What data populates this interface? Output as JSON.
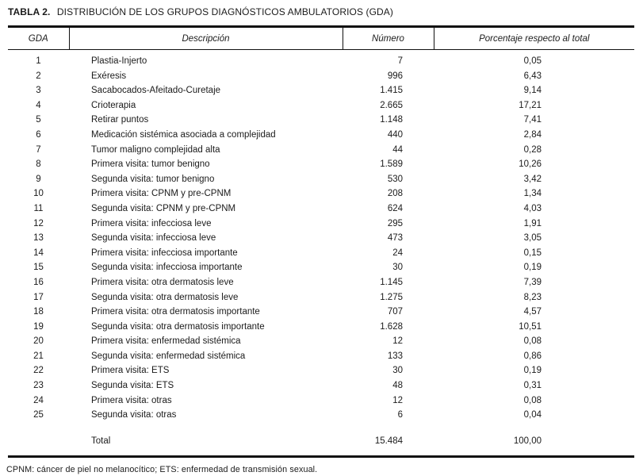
{
  "colors": {
    "ink": "#1b1b1b",
    "rule": "#111111",
    "background": "#ffffff"
  },
  "title": {
    "label": "TABLA 2.",
    "caption": "DISTRIBUCIÓN DE LOS GRUPOS DIAGNÓSTICOS AMBULATORIOS (GDA)"
  },
  "table": {
    "columns": [
      "GDA",
      "Descripción",
      "Número",
      "Porcentaje respecto al total"
    ],
    "rows": [
      {
        "gda": "1",
        "descripcion": "Plastia-Injerto",
        "numero": "7",
        "porcentaje": "0,05"
      },
      {
        "gda": "2",
        "descripcion": "Exéresis",
        "numero": "996",
        "porcentaje": "6,43"
      },
      {
        "gda": "3",
        "descripcion": "Sacabocados-Afeitado-Curetaje",
        "numero": "1.415",
        "porcentaje": "9,14"
      },
      {
        "gda": "4",
        "descripcion": "Crioterapia",
        "numero": "2.665",
        "porcentaje": "17,21"
      },
      {
        "gda": "5",
        "descripcion": "Retirar puntos",
        "numero": "1.148",
        "porcentaje": "7,41"
      },
      {
        "gda": "6",
        "descripcion": "Medicación sistémica asociada a complejidad",
        "numero": "440",
        "porcentaje": "2,84"
      },
      {
        "gda": "7",
        "descripcion": "Tumor maligno complejidad alta",
        "numero": "44",
        "porcentaje": "0,28"
      },
      {
        "gda": "8",
        "descripcion": "Primera visita: tumor benigno",
        "numero": "1.589",
        "porcentaje": "10,26"
      },
      {
        "gda": "9",
        "descripcion": "Segunda visita: tumor benigno",
        "numero": "530",
        "porcentaje": "3,42"
      },
      {
        "gda": "10",
        "descripcion": "Primera visita: CPNM y pre-CPNM",
        "numero": "208",
        "porcentaje": "1,34"
      },
      {
        "gda": "11",
        "descripcion": "Segunda visita: CPNM y pre-CPNM",
        "numero": "624",
        "porcentaje": "4,03"
      },
      {
        "gda": "12",
        "descripcion": "Primera visita: infecciosa leve",
        "numero": "295",
        "porcentaje": "1,91"
      },
      {
        "gda": "13",
        "descripcion": "Segunda visita: infecciosa leve",
        "numero": "473",
        "porcentaje": "3,05"
      },
      {
        "gda": "14",
        "descripcion": "Primera visita: infecciosa importante",
        "numero": "24",
        "porcentaje": "0,15"
      },
      {
        "gda": "15",
        "descripcion": "Segunda visita: infecciosa importante",
        "numero": "30",
        "porcentaje": "0,19"
      },
      {
        "gda": "16",
        "descripcion": "Primera visita: otra dermatosis leve",
        "numero": "1.145",
        "porcentaje": "7,39"
      },
      {
        "gda": "17",
        "descripcion": "Segunda visita: otra dermatosis leve",
        "numero": "1.275",
        "porcentaje": "8,23"
      },
      {
        "gda": "18",
        "descripcion": "Primera visita: otra dermatosis importante",
        "numero": "707",
        "porcentaje": "4,57"
      },
      {
        "gda": "19",
        "descripcion": "Segunda visita: otra dermatosis importante",
        "numero": "1.628",
        "porcentaje": "10,51"
      },
      {
        "gda": "20",
        "descripcion": "Primera visita: enfermedad sistémica",
        "numero": "12",
        "porcentaje": "0,08"
      },
      {
        "gda": "21",
        "descripcion": "Segunda visita: enfermedad sistémica",
        "numero": "133",
        "porcentaje": "0,86"
      },
      {
        "gda": "22",
        "descripcion": "Primera visita: ETS",
        "numero": "30",
        "porcentaje": "0,19"
      },
      {
        "gda": "23",
        "descripcion": "Segunda visita: ETS",
        "numero": "48",
        "porcentaje": "0,31"
      },
      {
        "gda": "24",
        "descripcion": "Primera visita: otras",
        "numero": "12",
        "porcentaje": "0,08"
      },
      {
        "gda": "25",
        "descripcion": "Segunda visita: otras",
        "numero": "6",
        "porcentaje": "0,04"
      }
    ],
    "total": {
      "label": "Total",
      "numero": "15.484",
      "porcentaje": "100,00"
    }
  },
  "footnote": "CPNM: cáncer de piel no melanocítico; ETS: enfermedad de transmisión sexual."
}
